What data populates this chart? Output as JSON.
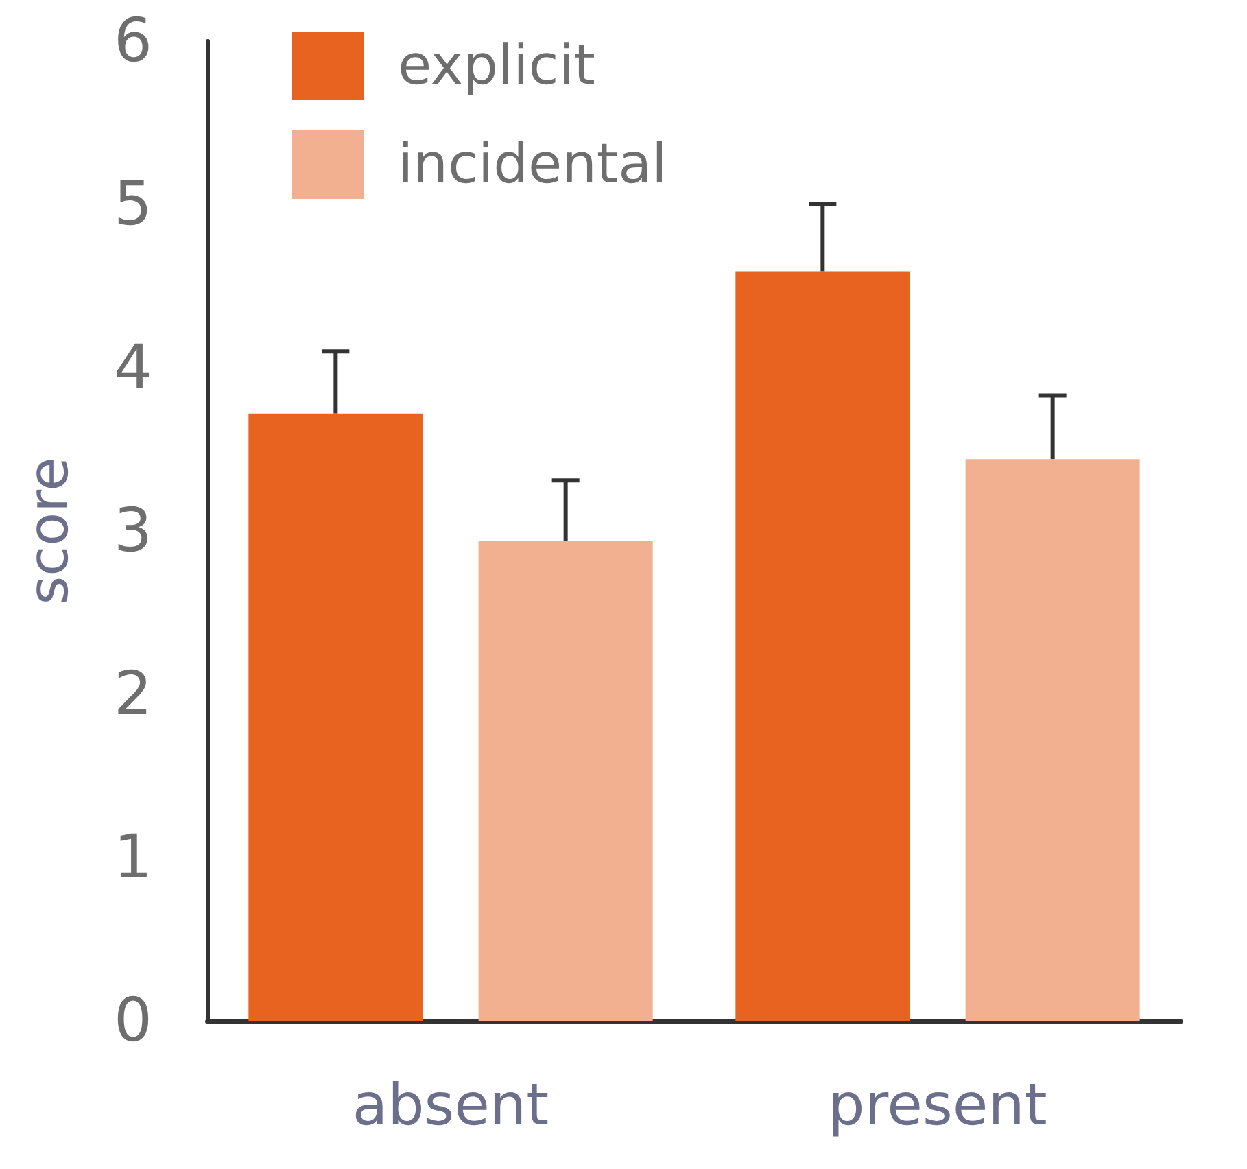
{
  "chart_data": {
    "type": "bar",
    "ylabel": "score",
    "categories": [
      "absent",
      "present"
    ],
    "series": [
      {
        "name": "explicit",
        "color": "#e8631f",
        "values": [
          3.72,
          4.59
        ],
        "errors": [
          [
            3.72,
            4.1
          ],
          [
            4.59,
            5.0
          ]
        ]
      },
      {
        "name": "incidental",
        "color": "#f2b090",
        "values": [
          2.94,
          3.44
        ],
        "errors": [
          [
            2.94,
            3.31
          ],
          [
            3.44,
            3.83
          ]
        ]
      }
    ],
    "ylim": [
      0,
      6
    ],
    "yticks": [
      0,
      1,
      2,
      3,
      4,
      5,
      6
    ],
    "grid": false,
    "legend": "top left"
  }
}
